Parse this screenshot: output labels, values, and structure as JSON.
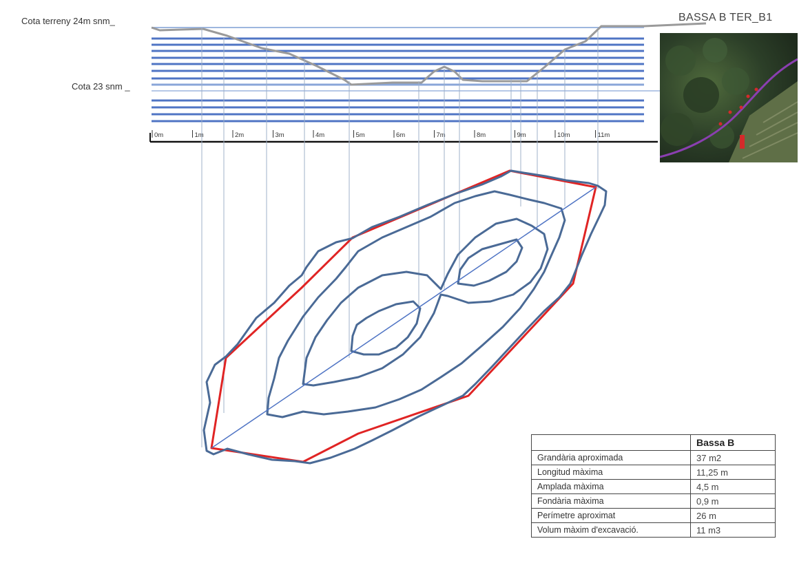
{
  "title": "BASSA  B TER_B1",
  "labels": {
    "top_elevation": "Cota terreny 24m snm_",
    "mid_elevation": "Cota 23 snm _"
  },
  "scale_ticks": [
    "0m",
    "1m",
    "2m",
    "3m",
    "4m",
    "5m",
    "6m",
    "7m",
    "8m",
    "9m",
    "10m",
    "11m"
  ],
  "table": {
    "header": "Bassa B",
    "rows": [
      {
        "label": "Grandària aproximada",
        "value": " 37 m2"
      },
      {
        "label": "Longitud màxima",
        "value": "11,25 m"
      },
      {
        "label": "Amplada màxima",
        "value": "4,5 m"
      },
      {
        "label": "Fondària màxima",
        "value": "0,9 m"
      },
      {
        "label": "Perímetre aproximat",
        "value": "26 m"
      },
      {
        "label": "Volum màxim d'excavació.",
        "value": "11 m3"
      }
    ]
  },
  "colors": {
    "contour": "#4a6a96",
    "outline": "#e02424",
    "strata": "#4f74c4",
    "profile": "#9a9a9a"
  }
}
